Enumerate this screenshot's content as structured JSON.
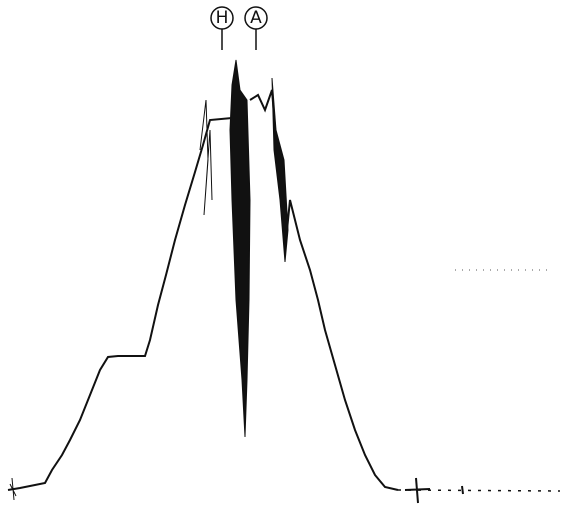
{
  "markers": [
    {
      "label": "H"
    },
    {
      "label": "A"
    }
  ]
}
